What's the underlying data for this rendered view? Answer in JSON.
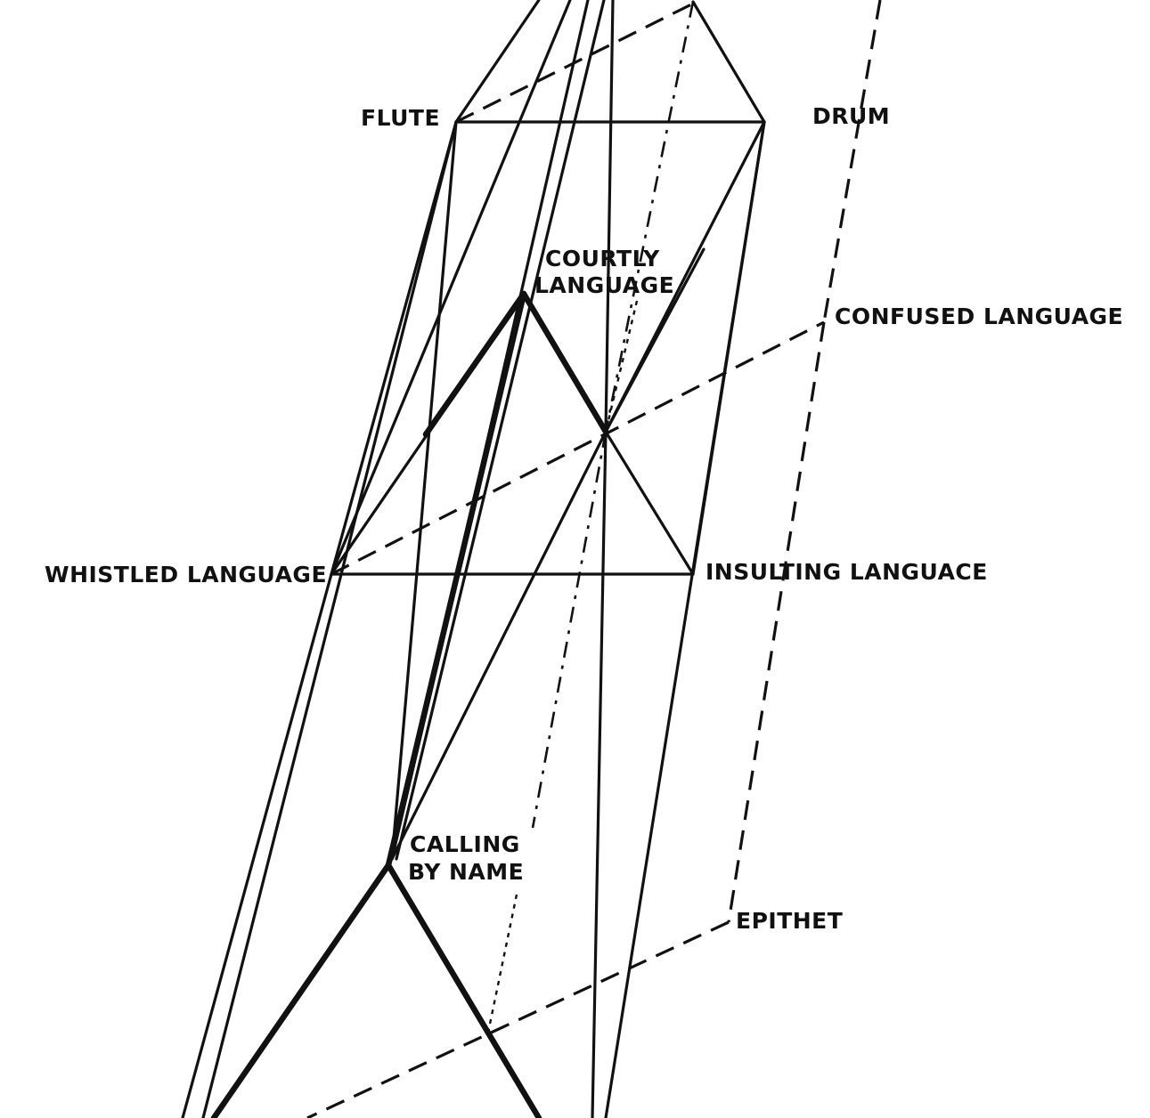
{
  "labels": {
    "flute": "FLUTE",
    "drum": "DRUM",
    "courtly_1": "COURTLY",
    "courtly_2": "LANGUAGE",
    "confused": "CONFUSED LANGUAGE",
    "whistled": "WHISTLED LANGUAGE",
    "insulting": "INSULTING LANGUACE",
    "calling_1": "CALLING",
    "calling_2": "BY NAME",
    "epithet": "EPITHET"
  },
  "colors": {
    "ink": "#111111",
    "background": "#ffffff"
  }
}
